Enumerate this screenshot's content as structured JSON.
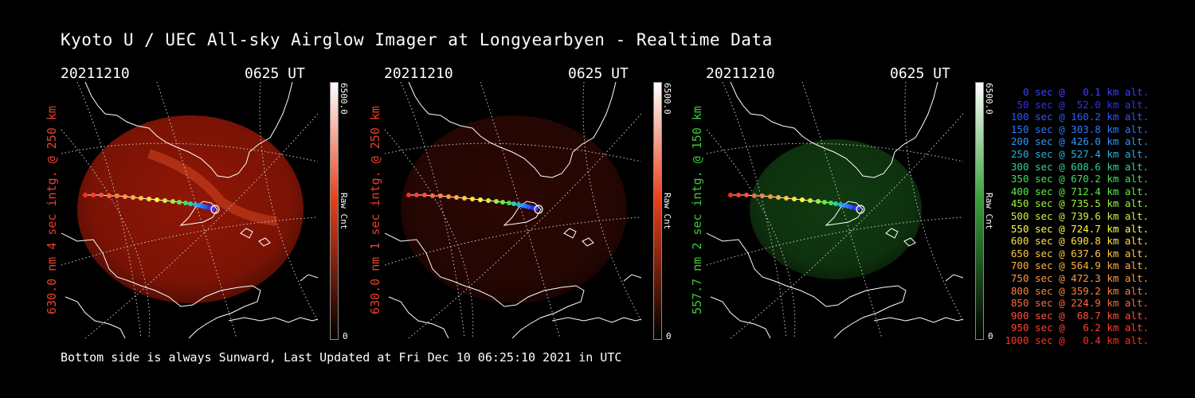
{
  "title": "Kyoto U / UEC All-sky Airglow Imager at Longyearbyen - Realtime Data",
  "footer": "Bottom side is always Sunward, Last Updated at Fri Dec 10 06:25:10 2021 in UTC",
  "panels": [
    {
      "date": "20211210",
      "time": "0625 UT",
      "ylabel": "630.0 nm 4 sec intg. @ 250 km",
      "ylabel_color": "#e8402a",
      "cbar_max": "6500.0",
      "cbar_min": "0",
      "cbar_unit": "Raw Cnt",
      "cbar_color": "#e8401a",
      "emission_color": "#c01e08",
      "emission_opacity": 0.75
    },
    {
      "date": "20211210",
      "time": "0625 UT",
      "ylabel": "630.0 nm 1 sec intg. @ 250 km",
      "ylabel_color": "#e8402a",
      "cbar_max": "6500.0",
      "cbar_min": "0",
      "cbar_unit": "Raw Cnt",
      "cbar_color": "#e8401a",
      "emission_color": "#7a1408",
      "emission_opacity": 0.35
    },
    {
      "date": "20211210",
      "time": "0625 UT",
      "ylabel": "557.7 nm 2 sec intg. @ 150 km",
      "ylabel_color": "#3cc83c",
      "cbar_max": "6500.0",
      "cbar_min": "0",
      "cbar_unit": "Raw Cnt",
      "cbar_color": "#3ca03c",
      "emission_color": "#1e6a1e",
      "emission_opacity": 0.55
    }
  ],
  "legend": [
    {
      "text": "0 sec @   0.1 km alt.",
      "color": "#4040ff"
    },
    {
      "text": "50 sec @  52.0 km alt.",
      "color": "#3030ff"
    },
    {
      "text": "100 sec @ 160.2 km alt.",
      "color": "#2a5aff"
    },
    {
      "text": "150 sec @ 303.8 km alt.",
      "color": "#2a7aff"
    },
    {
      "text": "200 sec @ 426.0 km alt.",
      "color": "#2a96ff"
    },
    {
      "text": "250 sec @ 527.4 km alt.",
      "color": "#2ab0d8"
    },
    {
      "text": "300 sec @ 608.6 km alt.",
      "color": "#30d0a0"
    },
    {
      "text": "350 sec @ 670.2 km alt.",
      "color": "#40e060"
    },
    {
      "text": "400 sec @ 712.4 km alt.",
      "color": "#60f040"
    },
    {
      "text": "450 sec @ 735.5 km alt.",
      "color": "#a0f040"
    },
    {
      "text": "500 sec @ 739.6 km alt.",
      "color": "#d0f040"
    },
    {
      "text": "550 sec @ 724.7 km alt.",
      "color": "#ffff40"
    },
    {
      "text": "600 sec @ 690.8 km alt.",
      "color": "#ffe040"
    },
    {
      "text": "650 sec @ 637.6 km alt.",
      "color": "#ffc840"
    },
    {
      "text": "700 sec @ 564.9 km alt.",
      "color": "#ffb040"
    },
    {
      "text": "750 sec @ 472.3 km alt.",
      "color": "#ff9840"
    },
    {
      "text": "800 sec @ 359.2 km alt.",
      "color": "#ff8040"
    },
    {
      "text": "850 sec @ 224.9 km alt.",
      "color": "#ff6840"
    },
    {
      "text": "900 sec @  68.7 km alt.",
      "color": "#ff5040"
    },
    {
      "text": "950 sec @   6.2 km alt.",
      "color": "#ff4030"
    },
    {
      "text": "1000 sec @   0.4 km alt.",
      "color": "#ff3020"
    }
  ]
}
